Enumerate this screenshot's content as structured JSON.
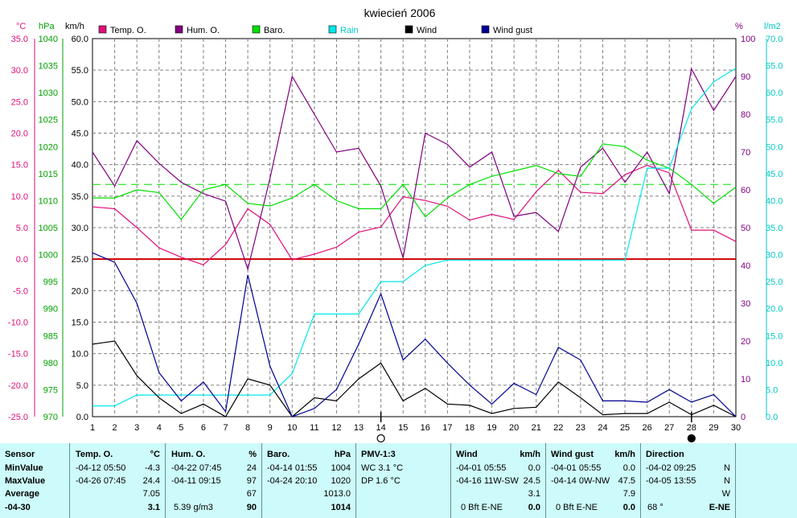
{
  "title": "kwiecień 2006",
  "units": {
    "temp": "°C",
    "baro": "hPa",
    "wind": "km/h",
    "hum": "%",
    "rain": "l/m2"
  },
  "legend": [
    {
      "label": "Temp. O.",
      "color": "#e0107a"
    },
    {
      "label": "Hum. O.",
      "color": "#800080"
    },
    {
      "label": "Baro.",
      "color": "#00e000"
    },
    {
      "label": "Rain",
      "color": "#00e8e8"
    },
    {
      "label": "Wind",
      "color": "#000000"
    },
    {
      "label": "Wind gust",
      "color": "#000090"
    }
  ],
  "chart_data": {
    "type": "line",
    "title": "kwiecień 2006",
    "x": [
      1,
      2,
      3,
      4,
      5,
      6,
      7,
      8,
      9,
      10,
      11,
      12,
      13,
      14,
      15,
      16,
      17,
      18,
      19,
      20,
      21,
      22,
      23,
      24,
      25,
      26,
      27,
      28,
      29,
      30
    ],
    "axes": {
      "temp": {
        "label": "°C",
        "ylim": [
          -25,
          35
        ],
        "ticks": [
          "35.0",
          "30.0",
          "25.0",
          "20.0",
          "15.0",
          "10.0",
          "5.0",
          "0.0",
          "-5.0",
          "-10.0",
          "-15.0",
          "-20.0",
          "-25.0"
        ]
      },
      "baro": {
        "label": "hPa",
        "ylim": [
          970,
          1040
        ],
        "ticks": [
          "1040",
          "1035",
          "1030",
          "1025",
          "1020",
          "1015",
          "1010",
          "1005",
          "1000",
          "995",
          "990",
          "985",
          "980",
          "975",
          "970"
        ]
      },
      "wind": {
        "label": "km/h",
        "ylim": [
          0,
          60
        ],
        "ticks": [
          "60.0",
          "55.0",
          "50.0",
          "45.0",
          "40.0",
          "35.0",
          "30.0",
          "25.0",
          "20.0",
          "15.0",
          "10.0",
          "5.0",
          "0.0"
        ]
      },
      "hum": {
        "label": "%",
        "ylim": [
          0,
          100
        ],
        "ticks": [
          "100",
          "90",
          "80",
          "70",
          "60",
          "50",
          "40",
          "30",
          "20",
          "10",
          "0"
        ]
      },
      "rain": {
        "label": "l/m2",
        "ylim": [
          0,
          70
        ],
        "ticks": [
          "70.0",
          "65.0",
          "60.0",
          "55.0",
          "50.0",
          "45.0",
          "40.0",
          "35.0",
          "30.0",
          "25.0",
          "20.0",
          "15.0",
          "10.0",
          "5.0",
          "0.0"
        ]
      }
    },
    "series": [
      {
        "name": "Temp. O.",
        "axis": "temp",
        "color": "#e0107a",
        "values": [
          8.3,
          8.0,
          5.0,
          1.8,
          0.3,
          -0.9,
          2.3,
          8.0,
          5.5,
          -0.1,
          0.8,
          1.9,
          4.3,
          5.1,
          9.9,
          9.3,
          8.4,
          6.2,
          7.1,
          6.3,
          10.7,
          14.1,
          10.6,
          10.4,
          13.4,
          14.9,
          13.7,
          4.6,
          4.6,
          2.8
        ]
      },
      {
        "name": "Hum. O.",
        "axis": "hum",
        "color": "#800080",
        "values": [
          70,
          61,
          73,
          67,
          62,
          59,
          57,
          39,
          63,
          90,
          80,
          70,
          71,
          61,
          42,
          75,
          72,
          66,
          70,
          53,
          54,
          49,
          66,
          71,
          62,
          70,
          59,
          92,
          81,
          90
        ]
      },
      {
        "name": "Baro.",
        "axis": "baro",
        "color": "#00e000",
        "values": [
          1010.5,
          1010.5,
          1012,
          1011.5,
          1006.5,
          1012,
          1013,
          1009.5,
          1009,
          1010.5,
          1013,
          1010,
          1008.5,
          1008.5,
          1013,
          1007,
          1010.5,
          1013,
          1014.5,
          1015.5,
          1016.5,
          1015,
          1014.5,
          1020.5,
          1020,
          1017.5,
          1016,
          1013,
          1009.5,
          1012.5
        ]
      },
      {
        "name": "Rain",
        "axis": "rain",
        "color": "#00e8e8",
        "values": [
          2,
          2,
          4,
          4,
          4,
          4,
          4,
          4,
          4,
          8,
          19,
          19,
          19,
          25,
          25,
          28,
          29,
          29,
          29,
          29,
          29,
          29,
          29,
          29,
          29,
          46,
          46,
          57,
          62,
          64.5
        ]
      },
      {
        "name": "Wind",
        "axis": "wind",
        "color": "#000000",
        "values": [
          11.5,
          12,
          6.5,
          3,
          0.5,
          2,
          0,
          6,
          5,
          0,
          3,
          2.5,
          6,
          8.5,
          2.5,
          4.5,
          2,
          1.8,
          0.5,
          1.3,
          1.5,
          5.5,
          3,
          0.3,
          0.5,
          0.5,
          2.3,
          0.3,
          1.8,
          0
        ]
      },
      {
        "name": "Wind gust",
        "axis": "wind",
        "color": "#000090",
        "values": [
          26,
          24.5,
          18,
          7,
          2.5,
          5.5,
          0.8,
          22.5,
          8,
          0,
          1.3,
          4.3,
          11.5,
          19.5,
          9,
          12.3,
          8.5,
          5,
          2,
          5.3,
          3.5,
          11,
          9,
          2.5,
          2.5,
          2.3,
          4.3,
          2.3,
          3.5,
          0
        ]
      }
    ],
    "reference_lines": [
      {
        "axis": "temp",
        "value": 0,
        "color": "#d00000",
        "style": "solid"
      },
      {
        "axis": "baro",
        "value": 1013,
        "color": "#00e000",
        "style": "dashed"
      }
    ],
    "markers": [
      {
        "x": 14,
        "symbol": "open-circle"
      },
      {
        "x": 28,
        "symbol": "filled-circle"
      }
    ],
    "grid": true,
    "legend_position": "top"
  },
  "table": {
    "sensor": {
      "header": "Sensor",
      "labels": [
        "MinValue",
        "MaxValue",
        "Average",
        "-04-30"
      ]
    },
    "temp": {
      "header": "Temp. O.",
      "unit": "°C",
      "min_time": "-04-12  05:50",
      "min_val": "-4.3",
      "max_time": "-04-26  07:45",
      "max_val": "24.4",
      "avg": "7.05",
      "last": "3.1"
    },
    "hum": {
      "header": "Hum. O.",
      "unit": "%",
      "min_time": "-04-22  07:45",
      "min_val": "24",
      "max_time": "-04-11  09:15",
      "max_val": "97",
      "avg": "67",
      "extra": "5.39 g/m3",
      "last": "90"
    },
    "baro": {
      "header": "Baro.",
      "unit": "hPa",
      "min_time": "-04-14  01:55",
      "min_val": "1004",
      "max_time": "-04-24  20:10",
      "max_val": "1020",
      "avg": "1013.0",
      "last": "1014"
    },
    "pmv": {
      "header": "PMV-1:3",
      "wc": "WC 3.1 °C",
      "dp": "DP 1.6 °C"
    },
    "wind": {
      "header": "Wind",
      "unit": "km/h",
      "min_time": "-04-01  05:55",
      "min_val": "0.0",
      "max_time": "-04-16  11W-SW",
      "max_val": "24.5",
      "avg": "3.1",
      "last_bft": "0 Bft E-NE",
      "last": "0.0"
    },
    "gust": {
      "header": "Wind gust",
      "unit": "km/h",
      "min_time": "-04-01  05:55",
      "min_val": "0.0",
      "max_time": "-04-14  0W-NW",
      "max_val": "47.5",
      "avg": "7.9",
      "last_bft": "0 Bft E-NE",
      "last": "0.0"
    },
    "dir": {
      "header": "Direction",
      "min_time": "-04-02  09:25",
      "min_val": "N",
      "max_time": "-04-05  13:55",
      "max_val": "N",
      "avg": "W",
      "last_deg": "68 °",
      "last": "E-NE"
    }
  }
}
